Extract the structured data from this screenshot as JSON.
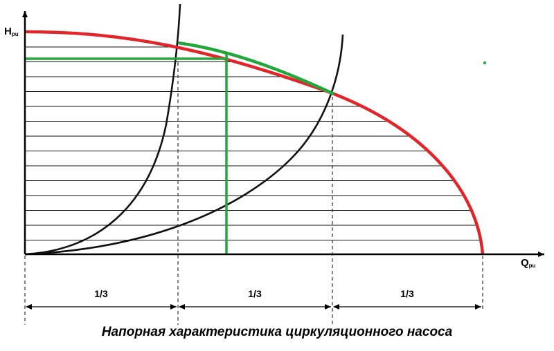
{
  "diagram": {
    "y_axis_label": "H",
    "y_axis_sub": "pu",
    "x_axis_label": "Q",
    "x_axis_sub": "pu",
    "segments": [
      "1/3",
      "1/3",
      "1/3"
    ],
    "caption": "Напорная характеристика циркуляционного насоса",
    "colors": {
      "pump_curve": "#e0262b",
      "operating_zone": "#22a83a",
      "system_curves": "#111111",
      "hatching": "#111111",
      "axes": "#000000"
    }
  }
}
